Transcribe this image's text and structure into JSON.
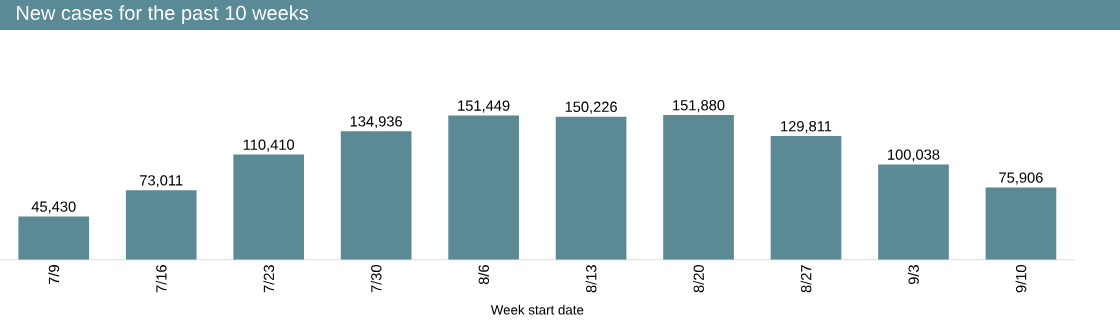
{
  "chart_data": {
    "type": "bar",
    "title": "New cases for the past 10 weeks",
    "xlabel": "Week start date",
    "categories": [
      "7/9",
      "7/16",
      "7/23",
      "7/30",
      "8/6",
      "8/13",
      "8/20",
      "8/27",
      "9/3",
      "9/10"
    ],
    "values": [
      45430,
      73011,
      110410,
      134936,
      151449,
      150226,
      151880,
      129811,
      100038,
      75906
    ],
    "value_labels": [
      "45,430",
      "73,011",
      "110,410",
      "134,936",
      "151,449",
      "150,226",
      "151,880",
      "129,811",
      "100,038",
      "75,906"
    ],
    "color": "#5b8a94"
  }
}
